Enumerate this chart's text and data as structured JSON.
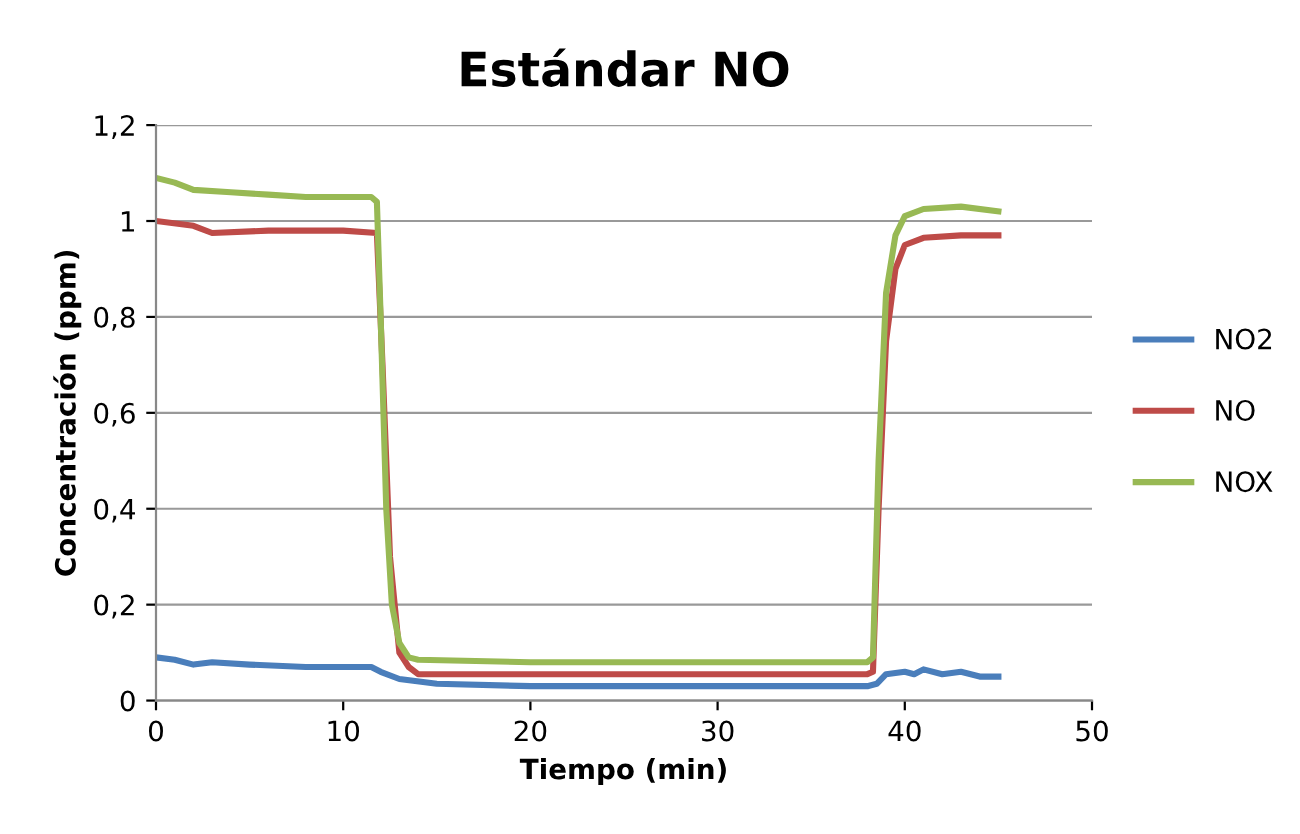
{
  "chart_data": {
    "type": "line",
    "title": "Estándar NO",
    "xlabel": "Tiempo (min)",
    "ylabel": "Concentración (ppm)",
    "xlim": [
      0,
      50
    ],
    "xticks": [
      0,
      10,
      20,
      30,
      40,
      50
    ],
    "ylim": [
      0,
      1.2
    ],
    "yticks": [
      0,
      {
        "value": 0.2,
        "label": "0,2"
      },
      {
        "value": 0.4,
        "label": "0,4"
      },
      {
        "value": 0.6,
        "label": "0,6"
      },
      {
        "value": 0.8,
        "label": "0,8"
      },
      1,
      {
        "value": 1.2,
        "label": "1,2"
      }
    ],
    "grid": "y",
    "legend": "right",
    "marker": "none",
    "line_style": "solid",
    "series": [
      {
        "name": "NO2",
        "color": "#4a7ebb",
        "x": [
          0,
          1,
          2,
          3,
          5,
          8,
          11.5,
          12,
          13,
          15,
          20,
          30,
          38,
          38.5,
          39,
          40,
          40.5,
          41,
          42,
          43,
          44,
          45
        ],
        "values": [
          0.09,
          0.085,
          0.075,
          0.08,
          0.075,
          0.07,
          0.07,
          0.06,
          0.045,
          0.035,
          0.03,
          0.03,
          0.03,
          0.035,
          0.055,
          0.06,
          0.055,
          0.065,
          0.055,
          0.06,
          0.05,
          0.05
        ]
      },
      {
        "name": "NO",
        "color": "#be4b48",
        "x": [
          0,
          2,
          3,
          6,
          10,
          11.8,
          12.1,
          12.5,
          13,
          13.5,
          14,
          20,
          30,
          38,
          38.3,
          38.6,
          39,
          39.5,
          40,
          41,
          43,
          45
        ],
        "values": [
          1.0,
          0.99,
          0.975,
          0.98,
          0.98,
          0.975,
          0.7,
          0.3,
          0.1,
          0.07,
          0.055,
          0.055,
          0.055,
          0.055,
          0.06,
          0.4,
          0.75,
          0.9,
          0.95,
          0.965,
          0.97,
          0.97
        ]
      },
      {
        "name": "NOX",
        "color": "#98b954",
        "x": [
          0,
          1,
          2,
          4,
          6,
          8,
          11.5,
          11.8,
          12,
          12.3,
          12.6,
          13,
          13.5,
          14,
          20,
          30,
          38,
          38.3,
          38.6,
          39,
          39.5,
          40,
          41,
          43,
          45
        ],
        "values": [
          1.09,
          1.08,
          1.065,
          1.06,
          1.055,
          1.05,
          1.05,
          1.04,
          0.8,
          0.4,
          0.2,
          0.12,
          0.09,
          0.085,
          0.08,
          0.08,
          0.08,
          0.09,
          0.5,
          0.85,
          0.97,
          1.01,
          1.025,
          1.03,
          1.02
        ]
      }
    ]
  }
}
